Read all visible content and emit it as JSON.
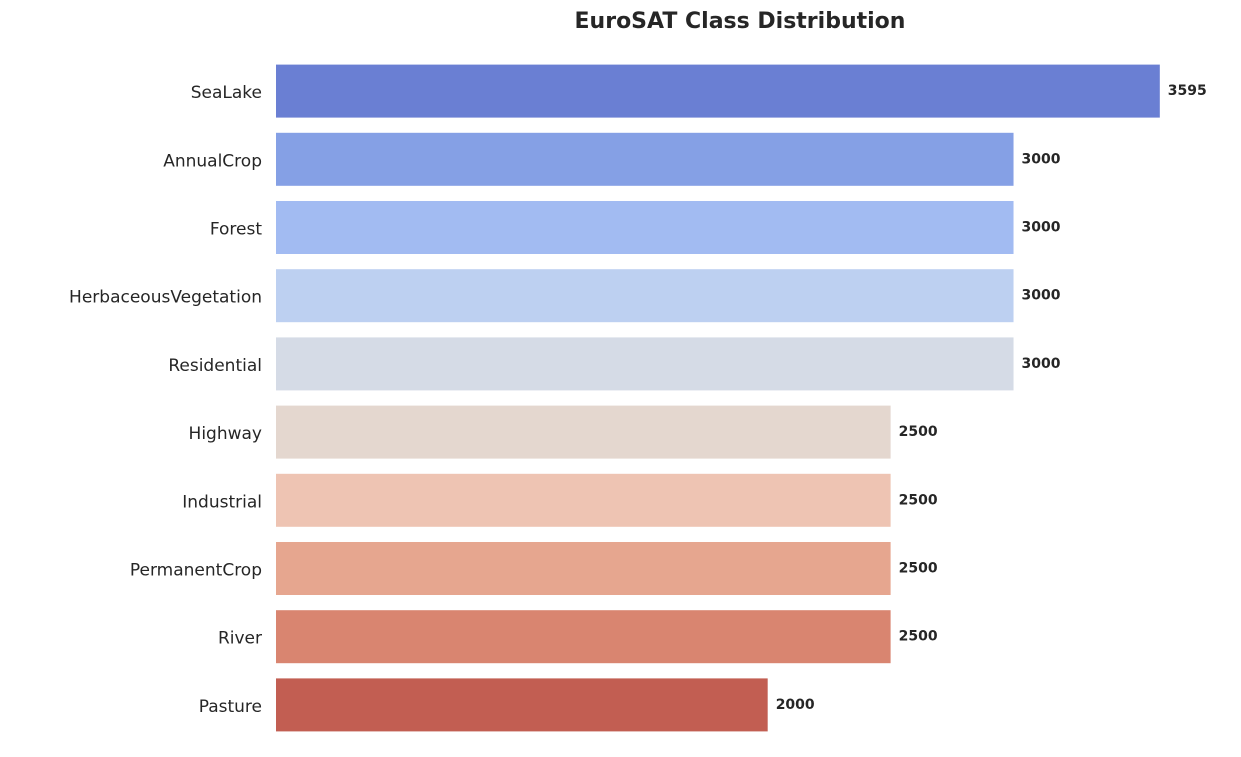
{
  "chart_data": {
    "type": "barh",
    "title": "EuroSAT Class Distribution",
    "categories": [
      "SeaLake",
      "AnnualCrop",
      "Forest",
      "HerbaceousVegetation",
      "Residential",
      "Highway",
      "Industrial",
      "PermanentCrop",
      "River",
      "Pasture"
    ],
    "values": [
      3595,
      3000,
      3000,
      3000,
      3000,
      2500,
      2500,
      2500,
      2500,
      2000
    ],
    "colors": [
      "#6a7fd3",
      "#85a0e5",
      "#a2bbf2",
      "#bdd0f1",
      "#d5dbe6",
      "#e4d7cf",
      "#eec4b3",
      "#e6a68f",
      "#d98570",
      "#c25e52"
    ],
    "xlim": [
      0,
      3774.75
    ]
  }
}
